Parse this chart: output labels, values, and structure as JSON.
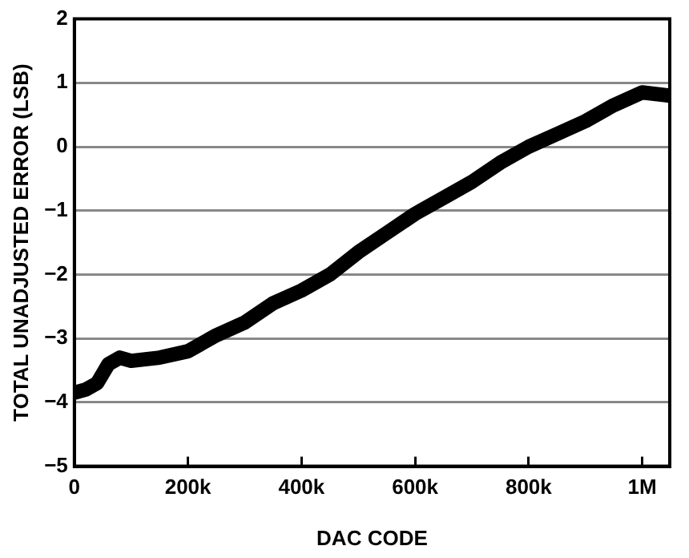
{
  "chart_data": {
    "type": "line",
    "xlabel": "DAC CODE",
    "ylabel": "TOTAL UNADJUSTED ERROR (LSB)",
    "x": [
      0,
      20000,
      40000,
      60000,
      80000,
      100000,
      150000,
      200000,
      250000,
      300000,
      350000,
      400000,
      450000,
      500000,
      550000,
      600000,
      650000,
      700000,
      750000,
      800000,
      850000,
      900000,
      950000,
      1000000,
      1048576
    ],
    "series": [
      {
        "color": "#000000",
        "values": [
          -3.85,
          -3.8,
          -3.7,
          -3.4,
          -3.3,
          -3.35,
          -3.3,
          -3.2,
          -2.95,
          -2.75,
          -2.45,
          -2.25,
          -2.0,
          -1.65,
          -1.35,
          -1.05,
          -0.8,
          -0.55,
          -0.25,
          0.0,
          0.2,
          0.4,
          0.65,
          0.85,
          0.8
        ]
      }
    ],
    "xlim": [
      0,
      1048576
    ],
    "xticks": [
      0,
      {
        "value": 200000,
        "label": "200k"
      },
      {
        "value": 400000,
        "label": "400k"
      },
      {
        "value": 600000,
        "label": "600k"
      },
      {
        "value": 800000,
        "label": "800k"
      },
      {
        "value": 1000000,
        "label": "1M"
      }
    ],
    "ylim": [
      -5,
      2
    ],
    "yticks": [
      -5,
      -4,
      -3,
      -2,
      -1,
      0,
      1,
      2
    ],
    "grid": "y",
    "legend": false,
    "marker": "none",
    "line_style": "solid"
  }
}
